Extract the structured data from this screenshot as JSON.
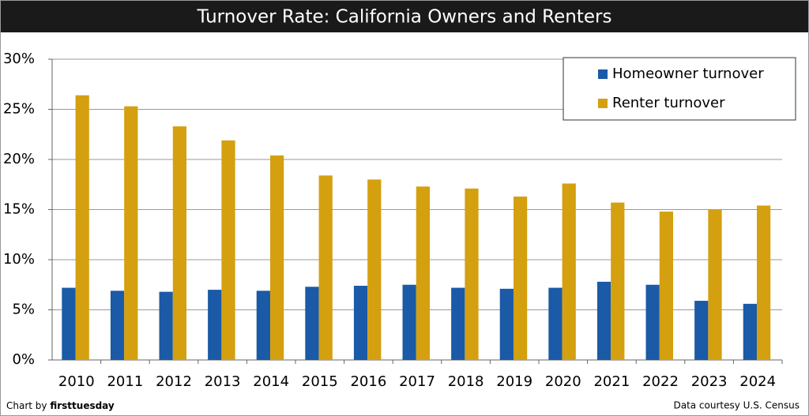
{
  "chart_data": {
    "type": "bar",
    "title": "Turnover Rate: California Owners and Renters",
    "categories": [
      "2010",
      "2011",
      "2012",
      "2013",
      "2014",
      "2015",
      "2016",
      "2017",
      "2018",
      "2019",
      "2020",
      "2021",
      "2022",
      "2023",
      "2024"
    ],
    "series": [
      {
        "name": "Homeowner turnover",
        "color": "#1a5aa6",
        "values": [
          7.2,
          6.9,
          6.8,
          7.0,
          6.9,
          7.3,
          7.4,
          7.5,
          7.2,
          7.1,
          7.2,
          7.8,
          7.5,
          5.9,
          5.6
        ]
      },
      {
        "name": "Renter turnover",
        "color": "#d4a010",
        "values": [
          26.4,
          25.3,
          23.3,
          21.9,
          20.4,
          18.4,
          18.0,
          17.3,
          17.1,
          16.3,
          17.6,
          15.7,
          14.8,
          15.0,
          15.4
        ]
      }
    ],
    "ylim": [
      0,
      30
    ],
    "yticks": [
      {
        "value": 0,
        "label": "0%"
      },
      {
        "value": 5,
        "label": "5%"
      },
      {
        "value": 10,
        "label": "10%"
      },
      {
        "value": 15,
        "label": "15%"
      },
      {
        "value": 20,
        "label": "20%"
      },
      {
        "value": 25,
        "label": "25%"
      },
      {
        "value": 30,
        "label": "30%"
      }
    ],
    "grid": true,
    "legend": "upper right",
    "credit_label": "Chart by",
    "credit_name": "firsttuesday",
    "source": "Data courtesy U.S. Census"
  }
}
